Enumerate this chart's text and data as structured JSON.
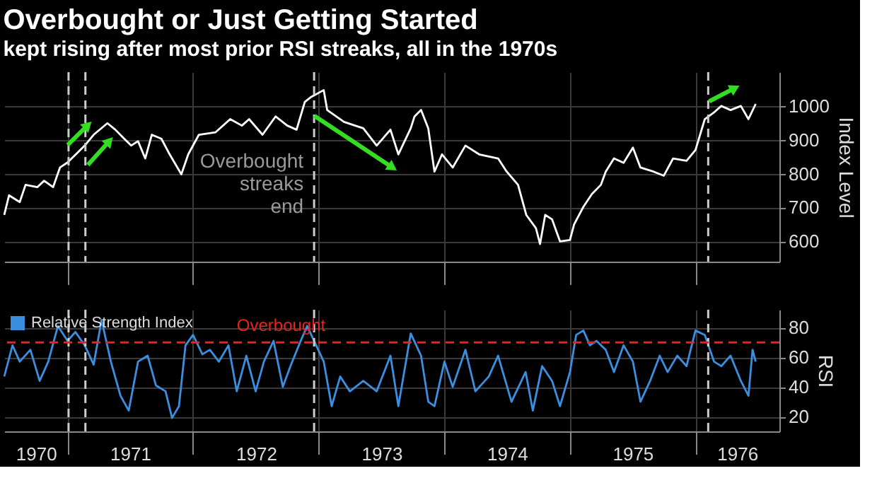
{
  "chart_data": [
    {
      "type": "line",
      "title": "Overbought or Just Getting Started",
      "subtitle": "kept rising after most prior RSI streaks, all in the 1970s",
      "ylabel": "Index Level",
      "x": [
        "1970-07-01",
        "1970-07-15",
        "1970-08-15",
        "1970-09-01",
        "1970-10-05",
        "1970-10-25",
        "1970-11-20",
        "1970-12-10",
        "1971-01-01",
        "1971-02-01",
        "1971-02-20",
        "1971-03-18",
        "1971-04-27",
        "1971-05-20",
        "1971-06-15",
        "1971-07-05",
        "1971-07-25",
        "1971-08-15",
        "1971-09-03",
        "1971-10-01",
        "1971-10-25",
        "1971-11-28",
        "1971-12-18",
        "1972-01-18",
        "1972-03-06",
        "1972-04-18",
        "1972-05-22",
        "1972-06-12",
        "1972-07-21",
        "1972-08-28",
        "1972-10-01",
        "1972-10-28",
        "1972-11-21",
        "1972-12-10",
        "1973-01-15",
        "1973-01-25",
        "1973-03-15",
        "1973-05-10",
        "1973-06-18",
        "1973-07-28",
        "1973-08-20",
        "1973-09-25",
        "1973-10-06",
        "1973-10-25",
        "1973-11-15",
        "1973-12-03",
        "1973-12-25",
        "1974-01-25",
        "1974-03-03",
        "1974-04-12",
        "1974-06-06",
        "1974-07-01",
        "1974-08-03",
        "1974-08-27",
        "1974-09-24",
        "1974-10-06",
        "1974-10-21",
        "1974-11-10",
        "1974-12-03",
        "1975-01-01",
        "1975-01-13",
        "1975-02-09",
        "1975-03-06",
        "1975-04-01",
        "1975-04-15",
        "1975-05-09",
        "1975-06-06",
        "1975-07-03",
        "1975-07-25",
        "1975-09-01",
        "1975-10-01",
        "1975-10-28",
        "1975-12-06",
        "1976-01-01",
        "1976-01-28",
        "1976-02-24",
        "1976-03-16",
        "1976-04-12",
        "1976-05-12",
        "1976-06-03",
        "1976-06-24"
      ],
      "series": [
        {
          "color": "#ffffff",
          "values": [
            678,
            736,
            716,
            767,
            760,
            779,
            760,
            818,
            833,
            864,
            883,
            915,
            949,
            930,
            903,
            883,
            896,
            845,
            915,
            903,
            857,
            798,
            857,
            915,
            922,
            961,
            942,
            961,
            915,
            969,
            942,
            930,
            1012,
            1027,
            1047,
            988,
            953,
            934,
            883,
            930,
            857,
            934,
            969,
            988,
            934,
            806,
            857,
            818,
            883,
            857,
            845,
            806,
            767,
            678,
            639,
            592,
            678,
            665,
            600,
            604,
            650,
            702,
            740,
            767,
            806,
            845,
            832,
            877,
            818,
            806,
            794,
            845,
            838,
            870,
            961,
            981,
            1000,
            988,
            1000,
            961,
            1006
          ]
        }
      ],
      "xlim": [
        "1970-07-01",
        "1976-09-01"
      ],
      "xticks": [
        {
          "value": "1971-01-01",
          "label": null
        },
        {
          "value": "1972-01-01",
          "label": null
        },
        {
          "value": "1973-01-01",
          "label": null
        },
        {
          "value": "1974-01-01",
          "label": null
        },
        {
          "value": "1975-01-01",
          "label": null
        },
        {
          "value": "1976-01-01",
          "label": null
        }
      ],
      "ylim": [
        540,
        1100
      ],
      "yticks": [
        600,
        700,
        800,
        900,
        1000
      ],
      "grid": true,
      "tick_labels": "y",
      "ref_lines": [
        {
          "axis": "x",
          "value": "1971-01-04",
          "color": "#cccccc",
          "line_style": "dashed"
        },
        {
          "axis": "x",
          "value": "1971-02-22",
          "color": "#cccccc",
          "line_style": "dashed"
        },
        {
          "axis": "x",
          "value": "1972-12-18",
          "color": "#cccccc",
          "line_style": "dashed"
        },
        {
          "axis": "x",
          "value": "1976-02-07",
          "color": "#cccccc",
          "line_style": "dashed"
        }
      ],
      "annotations": [
        "Overbought streaks end"
      ]
    },
    {
      "type": "line",
      "ylabel": "RSI",
      "legend": "top left",
      "x": [
        "1970-07-01",
        "1970-07-25",
        "1970-08-15",
        "1970-09-15",
        "1970-10-12",
        "1970-11-06",
        "1970-12-04",
        "1971-01-01",
        "1971-01-24",
        "1971-02-20",
        "1971-03-18",
        "1971-04-10",
        "1971-05-07",
        "1971-06-04",
        "1971-06-28",
        "1971-07-25",
        "1971-08-22",
        "1971-09-15",
        "1971-10-13",
        "1971-11-01",
        "1971-11-21",
        "1971-12-10",
        "1972-01-01",
        "1972-01-28",
        "1972-02-19",
        "1972-03-16",
        "1972-04-13",
        "1972-05-07",
        "1972-06-04",
        "1972-07-01",
        "1972-07-25",
        "1972-08-22",
        "1972-09-18",
        "1972-10-12",
        "1972-11-09",
        "1972-11-28",
        "1972-12-18",
        "1973-01-15",
        "1973-02-07",
        "1973-03-04",
        "1973-04-01",
        "1973-05-10",
        "1973-06-18",
        "1973-07-28",
        "1973-08-20",
        "1973-09-25",
        "1973-10-25",
        "1973-11-15",
        "1973-12-03",
        "1974-01-01",
        "1974-01-25",
        "1974-03-03",
        "1974-04-01",
        "1974-05-10",
        "1974-06-06",
        "1974-07-15",
        "1974-08-25",
        "1974-09-15",
        "1974-10-12",
        "1974-11-10",
        "1974-12-03",
        "1975-01-01",
        "1975-01-19",
        "1975-02-09",
        "1975-02-28",
        "1975-03-19",
        "1975-04-15",
        "1975-05-09",
        "1975-06-06",
        "1975-07-03",
        "1975-07-25",
        "1975-08-22",
        "1975-09-19",
        "1975-10-12",
        "1975-11-09",
        "1975-12-06",
        "1976-01-01",
        "1976-01-28",
        "1976-02-24",
        "1976-03-16",
        "1976-04-12",
        "1976-05-12",
        "1976-06-03",
        "1976-06-15",
        "1976-06-24"
      ],
      "series": [
        {
          "name": "Relative Strength Index",
          "color": "#3b8fe0",
          "values": [
            47,
            68,
            57,
            65,
            44,
            57,
            81,
            71,
            77,
            68,
            55,
            85,
            57,
            34,
            24,
            57,
            61,
            41,
            37,
            19,
            27,
            68,
            75,
            62,
            65,
            57,
            68,
            37,
            61,
            37,
            57,
            71,
            40,
            55,
            71,
            81,
            71,
            57,
            27,
            47,
            37,
            44,
            37,
            61,
            27,
            76,
            61,
            30,
            27,
            57,
            40,
            65,
            37,
            47,
            61,
            30,
            50,
            24,
            54,
            44,
            27,
            50,
            75,
            78,
            68,
            71,
            65,
            50,
            68,
            57,
            30,
            44,
            61,
            50,
            61,
            54,
            78,
            75,
            57,
            54,
            61,
            44,
            34,
            65,
            57
          ]
        }
      ],
      "xlim": [
        "1970-07-01",
        "1976-09-01"
      ],
      "xticks": [
        {
          "value": "1970-10-01",
          "label": "1970"
        },
        {
          "value": "1971-01-01",
          "label": null
        },
        {
          "value": "1971-07-02",
          "label": "1971"
        },
        {
          "value": "1972-01-01",
          "label": null
        },
        {
          "value": "1972-07-02",
          "label": "1972"
        },
        {
          "value": "1973-01-01",
          "label": null
        },
        {
          "value": "1973-07-02",
          "label": "1973"
        },
        {
          "value": "1974-01-01",
          "label": null
        },
        {
          "value": "1974-07-02",
          "label": "1974"
        },
        {
          "value": "1975-01-01",
          "label": null
        },
        {
          "value": "1975-07-02",
          "label": "1975"
        },
        {
          "value": "1976-01-01",
          "label": null
        },
        {
          "value": "1976-05-01",
          "label": "1976"
        }
      ],
      "ylim": [
        10,
        92
      ],
      "yticks": [
        20,
        40,
        60,
        80
      ],
      "grid": true,
      "ref_lines": [
        {
          "axis": "x",
          "value": "1971-01-04",
          "color": "#cccccc",
          "line_style": "dashed"
        },
        {
          "axis": "x",
          "value": "1971-02-22",
          "color": "#cccccc",
          "line_style": "dashed"
        },
        {
          "axis": "x",
          "value": "1972-12-18",
          "color": "#cccccc",
          "line_style": "dashed"
        },
        {
          "axis": "x",
          "value": "1976-02-07",
          "color": "#cccccc",
          "line_style": "dashed"
        },
        {
          "axis": "y",
          "value": 70,
          "label": "Overbought",
          "color": "#e8231f",
          "line_style": "dashed"
        }
      ]
    }
  ]
}
